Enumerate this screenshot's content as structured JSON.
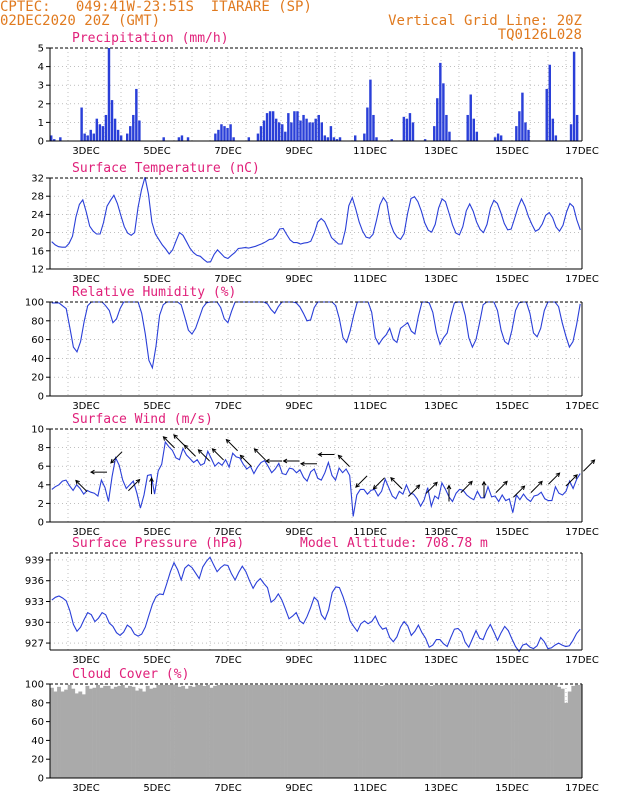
{
  "header": {
    "source": "CPTEC:",
    "coords": "049:41W-23:51S",
    "station": "ITARARE (SP)",
    "run": "02DEC2020 20Z (GMT)",
    "grid_note": "Vertical Grid Line: 20Z",
    "model_code": "TQ0126L028"
  },
  "x_axis": {
    "labels": [
      "3DEC",
      "5DEC",
      "7DEC",
      "9DEC",
      "11DEC",
      "13DEC",
      "15DEC",
      "17DEC"
    ]
  },
  "colors": {
    "line": "#2a3fd8",
    "bar": "#2a3fd8",
    "cloud": "#aaaaaa",
    "title": "#e0207a",
    "header": "#e07a1f"
  },
  "chart_data": [
    {
      "type": "bar",
      "title": "Precipitation (mm/h)",
      "ylim": [
        0,
        5
      ],
      "yticks": [
        0,
        1,
        2,
        3,
        4,
        5
      ],
      "grid": true,
      "x_start": "2020-12-02 20Z",
      "x_step_hours": 3,
      "values": [
        0.3,
        0.1,
        0,
        0.2,
        0,
        0,
        0,
        0,
        0,
        0,
        1.8,
        0.4,
        0.3,
        0.6,
        0.4,
        1.2,
        0.9,
        0.8,
        1.4,
        5.0,
        2.2,
        1.2,
        0.6,
        0.3,
        0,
        0.4,
        0.8,
        1.4,
        2.8,
        1.1,
        0,
        0,
        0,
        0,
        0,
        0,
        0,
        0.2,
        0,
        0,
        0,
        0,
        0.2,
        0.3,
        0,
        0.2,
        0,
        0,
        0,
        0,
        0,
        0,
        0,
        0,
        0.4,
        0.6,
        0.9,
        0.8,
        0.7,
        0.9,
        0.2,
        0,
        0,
        0,
        0,
        0.2,
        0,
        0,
        0.4,
        0.8,
        1.1,
        1.5,
        1.6,
        1.6,
        1.2,
        1.0,
        0.9,
        0.5,
        1.5,
        1.0,
        1.6,
        1.6,
        1.1,
        1.4,
        1.2,
        1.0,
        1.0,
        1.2,
        1.4,
        1.0,
        0.3,
        0.2,
        0.8,
        0.2,
        0.1,
        0.2,
        0,
        0,
        0,
        0,
        0.3,
        0,
        0,
        0.4,
        1.8,
        3.3,
        1.4,
        0.2,
        0,
        0,
        0,
        0,
        0.1,
        0,
        0,
        0,
        1.3,
        1.2,
        1.5,
        1.0,
        0,
        0,
        0,
        0.1,
        0,
        0,
        0.8,
        2.3,
        4.2,
        3.1,
        1.4,
        0.5,
        0,
        0,
        0,
        0,
        0,
        1.4,
        2.5,
        1.2,
        0.5,
        0,
        0,
        0,
        0,
        0,
        0.2,
        0.4,
        0.3,
        0,
        0,
        0,
        0,
        0.8,
        1.6,
        2.6,
        1.0,
        0.6,
        0,
        0,
        0,
        0,
        0,
        2.8,
        4.1,
        1.2,
        0.3,
        0,
        0,
        0,
        0,
        0.9,
        4.8,
        1.4,
        0
      ]
    },
    {
      "type": "line",
      "title": "Surface Temperature (nC)",
      "ylim": [
        12,
        32
      ],
      "yticks": [
        12,
        16,
        20,
        24,
        28,
        32
      ],
      "grid": true,
      "x_start": "2020-12-02 20Z",
      "x_step_hours": 3,
      "values": [
        18.0,
        17.3,
        16.9,
        16.8,
        16.8,
        17.6,
        19.2,
        23.4,
        26.2,
        27.2,
        24.5,
        21.4,
        20.3,
        19.7,
        19.7,
        22.2,
        25.8,
        27.1,
        28.2,
        26.4,
        23.8,
        21.3,
        19.9,
        19.4,
        20.0,
        25.6,
        29.4,
        32.2,
        28.4,
        22.3,
        19.7,
        18.5,
        17.3,
        16.4,
        15.3,
        16.2,
        18.2,
        20.0,
        19.4,
        18.0,
        16.6,
        15.6,
        15.0,
        14.8,
        14.1,
        13.5,
        13.6,
        15.2,
        16.2,
        15.4,
        14.6,
        14.3,
        15.0,
        15.6,
        16.5,
        16.6,
        16.7,
        16.6,
        16.8,
        17.0,
        17.3,
        17.6,
        18.0,
        18.5,
        18.6,
        19.4,
        20.8,
        20.9,
        19.6,
        18.4,
        17.8,
        17.8,
        17.5,
        17.7,
        17.8,
        18.1,
        19.9,
        22.3,
        23.1,
        22.4,
        20.7,
        18.9,
        18.2,
        17.5,
        17.5,
        20.6,
        25.9,
        27.7,
        25.2,
        22.3,
        20.3,
        19.0,
        18.8,
        19.6,
        22.7,
        26.1,
        27.7,
        26.6,
        22.1,
        20.1,
        19.0,
        18.5,
        19.8,
        24.1,
        27.5,
        27.9,
        26.8,
        24.7,
        22.1,
        20.5,
        20.1,
        21.8,
        25.4,
        27.4,
        26.8,
        24.3,
        21.7,
        19.9,
        19.5,
        21.3,
        24.8,
        26.3,
        24.7,
        22.3,
        20.7,
        20.0,
        21.8,
        25.4,
        27.1,
        26.4,
        24.4,
        22.0,
        20.6,
        20.8,
        23.1,
        25.6,
        27.4,
        25.8,
        23.5,
        21.8,
        20.3,
        20.7,
        21.9,
        23.8,
        24.4,
        23.3,
        21.2,
        20.3,
        21.6,
        24.5,
        26.4,
        25.7,
        22.8,
        20.6
      ]
    },
    {
      "type": "line",
      "title": "Relative Humidity (%)",
      "ylim": [
        0,
        100
      ],
      "yticks": [
        0,
        20,
        40,
        60,
        80,
        100
      ],
      "grid": true,
      "x_start": "2020-12-02 20Z",
      "x_step_hours": 3,
      "values": [
        99,
        99,
        99,
        96,
        93,
        73,
        52,
        47,
        58,
        79,
        96,
        100,
        100,
        100,
        100,
        96,
        91,
        78,
        82,
        93,
        100,
        100,
        100,
        100,
        100,
        88,
        66,
        38,
        30,
        53,
        86,
        97,
        100,
        100,
        100,
        100,
        97,
        84,
        70,
        66,
        72,
        83,
        94,
        99,
        100,
        100,
        100,
        94,
        82,
        78,
        90,
        100,
        100,
        100,
        100,
        100,
        100,
        100,
        100,
        100,
        98,
        92,
        88,
        95,
        100,
        100,
        100,
        100,
        99,
        95,
        88,
        80,
        81,
        94,
        100,
        100,
        100,
        100,
        100,
        96,
        82,
        62,
        57,
        69,
        86,
        100,
        100,
        100,
        100,
        89,
        62,
        55,
        61,
        65,
        72,
        60,
        57,
        72,
        75,
        78,
        69,
        66,
        85,
        100,
        100,
        99,
        89,
        68,
        55,
        62,
        67,
        85,
        99,
        100,
        100,
        86,
        62,
        52,
        60,
        78,
        97,
        100,
        100,
        100,
        91,
        70,
        58,
        55,
        70,
        91,
        99,
        100,
        100,
        88,
        67,
        63,
        72,
        91,
        100,
        100,
        100,
        95,
        78,
        64,
        52,
        58,
        76,
        98
      ]
    },
    {
      "type": "line",
      "title": "Surface Wind (m/s)",
      "ylim": [
        0,
        10
      ],
      "yticks": [
        0,
        2,
        4,
        6,
        8,
        10
      ],
      "grid": true,
      "x_start": "2020-12-02 20Z",
      "x_step_hours": 3,
      "values": [
        3.5,
        3.8,
        4.0,
        4.4,
        4.5,
        3.9,
        3.4,
        4.0,
        3.6,
        3.0,
        3.4,
        3.2,
        3.1,
        2.8,
        4.5,
        3.7,
        2.2,
        4.9,
        6.9,
        6.1,
        4.5,
        3.6,
        4.0,
        4.4,
        3.1,
        1.5,
        2.9,
        5.0,
        5.1,
        3.0,
        5.5,
        6.2,
        8.6,
        8.1,
        7.7,
        6.9,
        6.7,
        7.9,
        7.2,
        6.8,
        6.4,
        6.7,
        6.1,
        6.3,
        7.6,
        6.8,
        6.0,
        6.4,
        6.1,
        6.7,
        5.9,
        7.4,
        7.0,
        6.9,
        6.2,
        5.7,
        6.0,
        5.2,
        5.9,
        6.4,
        6.6,
        6.0,
        5.3,
        5.7,
        6.3,
        5.2,
        5.1,
        5.8,
        5.7,
        5.3,
        5.6,
        4.8,
        4.4,
        5.4,
        5.7,
        4.7,
        4.5,
        5.3,
        6.4,
        5.0,
        4.5,
        5.8,
        5.3,
        5.7,
        5.0,
        0.6,
        2.9,
        3.5,
        3.5,
        3.0,
        3.4,
        3.5,
        2.8,
        3.3,
        4.6,
        3.7,
        2.8,
        2.5,
        3.3,
        3.0,
        4.0,
        3.1,
        3.0,
        2.5,
        1.7,
        2.4,
        3.7,
        1.7,
        2.8,
        2.5,
        4.2,
        3.5,
        2.7,
        2.2,
        3.1,
        3.5,
        3.4,
        2.9,
        2.6,
        2.4,
        3.3,
        2.6,
        2.6,
        3.8,
        2.7,
        2.8,
        2.2,
        2.9,
        2.3,
        2.5,
        1.0,
        2.9,
        2.4,
        3.0,
        2.5,
        2.2,
        2.8,
        2.9,
        3.2,
        2.5,
        2.3,
        2.3,
        3.8,
        3.1,
        2.9,
        3.3,
        4.4,
        3.6,
        4.6,
        5.2
      ],
      "arrows": [
        {
          "x": 0.5,
          "dir": "NW"
        },
        {
          "x": 1.0,
          "dir": "W"
        },
        {
          "x": 1.5,
          "dir": "SW"
        },
        {
          "x": 2.0,
          "dir": "NE"
        },
        {
          "x": 2.5,
          "dir": "N"
        },
        {
          "x": 3.0,
          "dir": "NW"
        },
        {
          "x": 3.3,
          "dir": "NW"
        },
        {
          "x": 3.6,
          "dir": "NW"
        },
        {
          "x": 4.0,
          "dir": "NW"
        },
        {
          "x": 4.4,
          "dir": "NW"
        },
        {
          "x": 4.8,
          "dir": "NW"
        },
        {
          "x": 5.2,
          "dir": "NW"
        },
        {
          "x": 5.6,
          "dir": "NW"
        },
        {
          "x": 6.0,
          "dir": "W"
        },
        {
          "x": 6.5,
          "dir": "W"
        },
        {
          "x": 7.0,
          "dir": "W"
        },
        {
          "x": 7.5,
          "dir": "W"
        },
        {
          "x": 8.0,
          "dir": "NW"
        },
        {
          "x": 8.5,
          "dir": "SW"
        },
        {
          "x": 9.0,
          "dir": "SW"
        },
        {
          "x": 9.5,
          "dir": "NW"
        },
        {
          "x": 10.0,
          "dir": "NE"
        },
        {
          "x": 10.5,
          "dir": "NE"
        },
        {
          "x": 11.0,
          "dir": "N"
        },
        {
          "x": 11.5,
          "dir": "NE"
        },
        {
          "x": 12.0,
          "dir": "N"
        },
        {
          "x": 12.5,
          "dir": "NE"
        },
        {
          "x": 13.0,
          "dir": "NE"
        },
        {
          "x": 13.5,
          "dir": "NE"
        },
        {
          "x": 14.0,
          "dir": "NE"
        },
        {
          "x": 14.5,
          "dir": "NE"
        },
        {
          "x": 15.0,
          "dir": "NE"
        }
      ]
    },
    {
      "type": "line",
      "title": "Surface Pressure (hPa)",
      "annotation": "Model Altitude: 708.78 m",
      "ylim": [
        926,
        940
      ],
      "yticks": [
        927,
        930,
        933,
        936,
        939
      ],
      "grid": true,
      "x_start": "2020-12-02 20Z",
      "x_step_hours": 3,
      "values": [
        933.2,
        933.6,
        933.8,
        933.5,
        933.1,
        931.7,
        929.7,
        928.7,
        929.3,
        930.4,
        931.4,
        931.1,
        930.1,
        930.6,
        931.4,
        931.1,
        929.9,
        929.4,
        928.5,
        928.1,
        928.6,
        929.6,
        929.2,
        928.3,
        928.0,
        928.3,
        929.3,
        931.0,
        932.6,
        933.7,
        934.1,
        934.0,
        935.6,
        937.3,
        938.6,
        937.6,
        936.1,
        937.8,
        938.3,
        937.9,
        937.1,
        936.3,
        938.0,
        938.8,
        939.4,
        938.3,
        937.3,
        937.9,
        938.3,
        938.2,
        937.0,
        936.1,
        937.2,
        938.1,
        937.3,
        936.0,
        934.9,
        935.8,
        936.3,
        935.6,
        935.0,
        932.9,
        933.3,
        934.1,
        933.2,
        931.9,
        930.5,
        930.9,
        931.4,
        930.2,
        929.8,
        930.8,
        932.1,
        933.6,
        933.1,
        931.1,
        930.4,
        931.8,
        934.3,
        935.1,
        935.0,
        933.7,
        932.1,
        930.2,
        929.4,
        928.7,
        929.8,
        930.2,
        929.8,
        930.1,
        930.9,
        929.7,
        929.0,
        929.2,
        927.8,
        927.2,
        927.9,
        929.3,
        930.1,
        929.5,
        928.1,
        928.7,
        929.6,
        928.5,
        927.7,
        926.4,
        926.7,
        927.5,
        927.5,
        926.9,
        926.5,
        927.8,
        929.0,
        929.1,
        928.6,
        927.1,
        926.4,
        927.6,
        928.8,
        927.7,
        927.5,
        928.8,
        929.7,
        928.6,
        927.4,
        928.5,
        929.4,
        928.8,
        927.6,
        926.5,
        925.8,
        926.7,
        926.9,
        926.4,
        926.2,
        926.6,
        927.8,
        927.2,
        926.2,
        926.3,
        926.7,
        927.0,
        926.7,
        926.5,
        926.6,
        927.4,
        928.4,
        929.0
      ]
    },
    {
      "type": "bar",
      "title": "Cloud Cover (%)",
      "ylim": [
        0,
        100
      ],
      "yticks": [
        0,
        20,
        40,
        60,
        80,
        100
      ],
      "grid": true,
      "x_start": "2020-12-02 20Z",
      "x_step_hours": 3,
      "values": [
        96,
        92,
        97,
        92,
        94,
        99,
        95,
        90,
        92,
        89,
        98,
        95,
        96,
        99,
        96,
        98,
        98,
        95,
        97,
        98,
        99,
        96,
        98,
        97,
        93,
        95,
        92,
        98,
        95,
        96,
        99,
        99,
        99,
        99,
        99,
        99,
        97,
        98,
        95,
        98,
        97,
        99,
        99,
        98,
        99,
        96,
        98,
        99,
        99,
        99,
        99,
        99,
        99,
        99,
        99,
        99,
        99,
        99,
        99,
        99,
        99,
        99,
        99,
        99,
        99,
        99,
        99,
        99,
        99,
        99,
        99,
        99,
        99,
        99,
        99,
        99,
        99,
        99,
        99,
        99,
        99,
        99,
        99,
        99,
        99,
        99,
        99,
        99,
        99,
        99,
        99,
        99,
        99,
        98,
        99,
        99,
        99,
        99,
        99,
        99,
        99,
        99,
        99,
        99,
        99,
        99,
        99,
        98,
        99,
        99,
        99,
        99,
        99,
        99,
        99,
        99,
        99,
        99,
        99,
        99,
        99,
        99,
        99,
        99,
        99,
        99,
        99,
        99,
        99,
        99,
        99,
        99,
        99,
        99,
        99,
        99,
        99,
        99,
        99,
        99,
        99,
        99,
        99,
        97,
        95,
        80,
        92,
        98,
        99,
        99
      ]
    }
  ]
}
